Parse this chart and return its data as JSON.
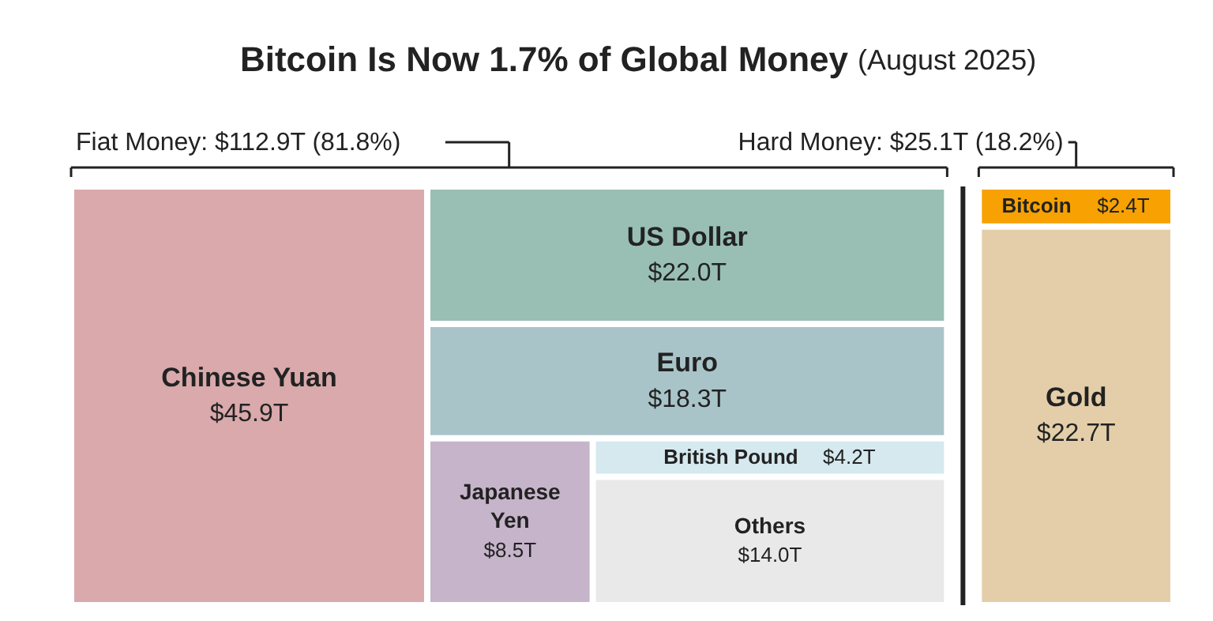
{
  "chart_data": [
    {
      "type": "other",
      "title": "Bitcoin Is Now 1.7% of Global Money",
      "subtitle": "(August 2025)",
      "annotations": [
        "Fiat Money: $112.9T (81.8%)"
      ],
      "categories": [
        "Chinese Yuan",
        "US Dollar",
        "Euro",
        "Japanese Yen",
        "British Pound",
        "Others"
      ],
      "values": [
        45.9,
        22.0,
        18.3,
        8.5,
        4.2,
        14.0
      ],
      "colors": [
        "#d9a9ac",
        "#99bfb5",
        "#a9c4c9",
        "#c6b4ca",
        "#d5e9ef",
        "#e9e9e9"
      ],
      "value_labels": [
        "$45.9T",
        "$22.0T",
        "$18.3T",
        "$8.5T",
        "$4.2T",
        "$14.0T"
      ]
    },
    {
      "type": "other",
      "annotations": [
        "Hard Money: $25.1T (18.2%)"
      ],
      "categories": [
        "Bitcoin",
        "Gold"
      ],
      "values": [
        2.4,
        22.7
      ],
      "colors": [
        "#f7a102",
        "#e3cea9"
      ],
      "value_labels": [
        "$2.4T",
        "$22.7T"
      ]
    }
  ]
}
